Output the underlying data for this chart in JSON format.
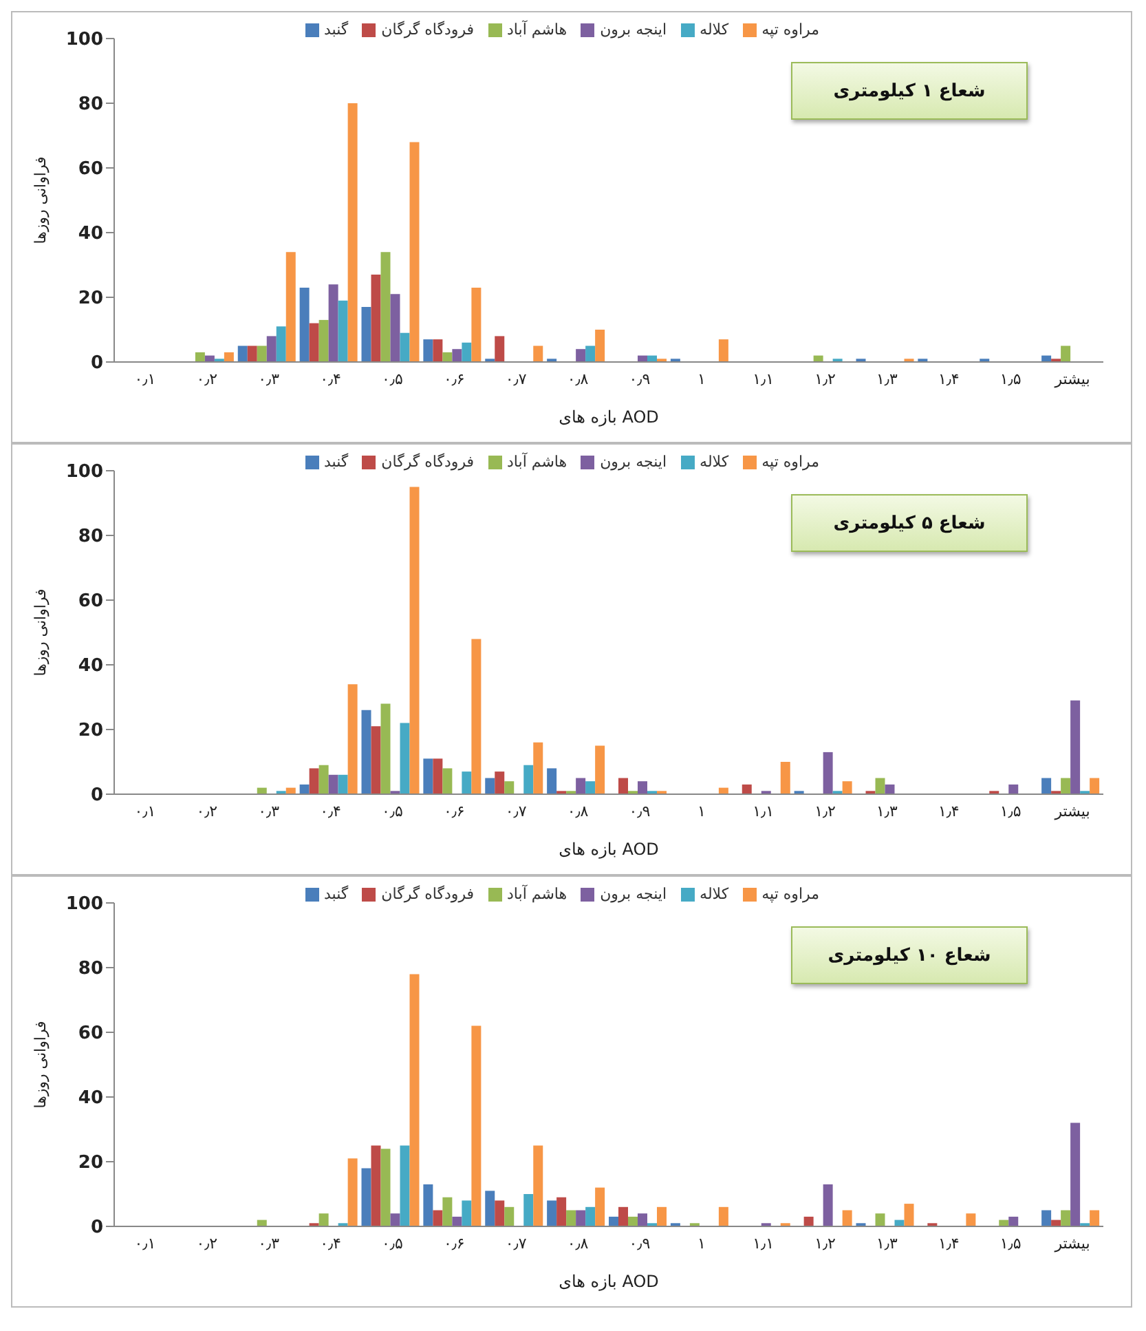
{
  "chart_data": [
    {
      "type": "bar",
      "xlabel": "بازه های AOD",
      "ylabel": "فراوانی روزها",
      "annotations": [
        "شعاع ۱ کیلومتری"
      ],
      "legend": "top",
      "grid": false,
      "ylim": [
        0,
        100
      ],
      "yticks": [
        0,
        20,
        40,
        60,
        80,
        100
      ],
      "categories": [
        "۰٫۱",
        "۰٫۲",
        "۰٫۳",
        "۰٫۴",
        "۰٫۵",
        "۰٫۶",
        "۰٫۷",
        "۰٫۸",
        "۰٫۹",
        "۱",
        "۱٫۱",
        "۱٫۲",
        "۱٫۳",
        "۱٫۴",
        "۱٫۵",
        "بیشتر"
      ],
      "series": [
        {
          "name": "گنبد",
          "color": "#4a7ebb",
          "values": [
            0,
            0,
            5,
            23,
            17,
            7,
            1,
            1,
            0,
            1,
            0,
            0,
            1,
            1,
            1,
            2
          ]
        },
        {
          "name": "فرودگاه گرگان",
          "color": "#be4b48",
          "values": [
            0,
            0,
            5,
            12,
            27,
            7,
            8,
            0,
            0,
            0,
            0,
            0,
            0,
            0,
            0,
            1
          ]
        },
        {
          "name": "هاشم آباد",
          "color": "#98b954",
          "values": [
            0,
            3,
            5,
            13,
            34,
            3,
            0,
            0,
            0,
            0,
            0,
            2,
            0,
            0,
            0,
            5
          ]
        },
        {
          "name": "اینجه برون",
          "color": "#7d60a0",
          "values": [
            0,
            2,
            8,
            24,
            21,
            4,
            0,
            4,
            2,
            0,
            0,
            0,
            0,
            0,
            0,
            0
          ]
        },
        {
          "name": "کلاله",
          "color": "#46aac5",
          "values": [
            0,
            1,
            11,
            19,
            9,
            6,
            0,
            5,
            2,
            0,
            0,
            1,
            0,
            0,
            0,
            0
          ]
        },
        {
          "name": "مراوه تپه",
          "color": "#f79646",
          "values": [
            0,
            3,
            34,
            80,
            68,
            23,
            5,
            10,
            1,
            7,
            0,
            0,
            1,
            0,
            0,
            0
          ]
        }
      ]
    },
    {
      "type": "bar",
      "xlabel": "بازه های AOD",
      "ylabel": "فراوانی روزها",
      "annotations": [
        "شعاع ۵ کیلومتری"
      ],
      "legend": "top",
      "grid": false,
      "ylim": [
        0,
        100
      ],
      "yticks": [
        0,
        20,
        40,
        60,
        80,
        100
      ],
      "categories": [
        "۰٫۱",
        "۰٫۲",
        "۰٫۳",
        "۰٫۴",
        "۰٫۵",
        "۰٫۶",
        "۰٫۷",
        "۰٫۸",
        "۰٫۹",
        "۱",
        "۱٫۱",
        "۱٫۲",
        "۱٫۳",
        "۱٫۴",
        "۱٫۵",
        "بیشتر"
      ],
      "series": [
        {
          "name": "گنبد",
          "color": "#4a7ebb",
          "values": [
            0,
            0,
            0,
            3,
            26,
            11,
            5,
            8,
            0,
            0,
            0,
            1,
            0,
            0,
            0,
            5
          ]
        },
        {
          "name": "فرودگاه گرگان",
          "color": "#be4b48",
          "values": [
            0,
            0,
            0,
            8,
            21,
            11,
            7,
            1,
            5,
            0,
            3,
            0,
            1,
            0,
            1,
            1
          ]
        },
        {
          "name": "هاشم آباد",
          "color": "#98b954",
          "values": [
            0,
            0,
            2,
            9,
            28,
            8,
            4,
            1,
            1,
            0,
            0,
            0,
            5,
            0,
            0,
            5
          ]
        },
        {
          "name": "اینجه برون",
          "color": "#7d60a0",
          "values": [
            0,
            0,
            0,
            6,
            1,
            0,
            0,
            5,
            4,
            0,
            1,
            13,
            3,
            0,
            3,
            29
          ]
        },
        {
          "name": "کلاله",
          "color": "#46aac5",
          "values": [
            0,
            0,
            1,
            6,
            22,
            7,
            9,
            4,
            1,
            0,
            0,
            1,
            0,
            0,
            0,
            1
          ]
        },
        {
          "name": "مراوه تپه",
          "color": "#f79646",
          "values": [
            0,
            0,
            2,
            34,
            95,
            48,
            16,
            15,
            1,
            2,
            10,
            4,
            0,
            0,
            0,
            5
          ]
        }
      ]
    },
    {
      "type": "bar",
      "xlabel": "بازه های AOD",
      "ylabel": "فراوانی روزها",
      "annotations": [
        "شعاع ۱۰ کیلومتری"
      ],
      "legend": "top",
      "grid": false,
      "ylim": [
        0,
        100
      ],
      "yticks": [
        0,
        20,
        40,
        60,
        80,
        100
      ],
      "categories": [
        "۰٫۱",
        "۰٫۲",
        "۰٫۳",
        "۰٫۴",
        "۰٫۵",
        "۰٫۶",
        "۰٫۷",
        "۰٫۸",
        "۰٫۹",
        "۱",
        "۱٫۱",
        "۱٫۲",
        "۱٫۳",
        "۱٫۴",
        "۱٫۵",
        "بیشتر"
      ],
      "series": [
        {
          "name": "گنبد",
          "color": "#4a7ebb",
          "values": [
            0,
            0,
            0,
            0,
            18,
            13,
            11,
            8,
            3,
            1,
            0,
            0,
            1,
            0,
            0,
            5
          ]
        },
        {
          "name": "فرودگاه گرگان",
          "color": "#be4b48",
          "values": [
            0,
            0,
            0,
            1,
            25,
            5,
            8,
            9,
            6,
            0,
            0,
            3,
            0,
            1,
            0,
            2
          ]
        },
        {
          "name": "هاشم آباد",
          "color": "#98b954",
          "values": [
            0,
            0,
            2,
            4,
            24,
            9,
            6,
            5,
            3,
            1,
            0,
            0,
            4,
            0,
            2,
            5
          ]
        },
        {
          "name": "اینجه برون",
          "color": "#7d60a0",
          "values": [
            0,
            0,
            0,
            0,
            4,
            3,
            0,
            5,
            4,
            0,
            1,
            13,
            0,
            0,
            3,
            32
          ]
        },
        {
          "name": "کلاله",
          "color": "#46aac5",
          "values": [
            0,
            0,
            0,
            1,
            25,
            8,
            10,
            6,
            1,
            0,
            0,
            0,
            2,
            0,
            0,
            1
          ]
        },
        {
          "name": "مراوه تپه",
          "color": "#f79646",
          "values": [
            0,
            0,
            0,
            21,
            78,
            62,
            25,
            12,
            6,
            6,
            1,
            5,
            7,
            4,
            0,
            5
          ]
        }
      ]
    }
  ]
}
